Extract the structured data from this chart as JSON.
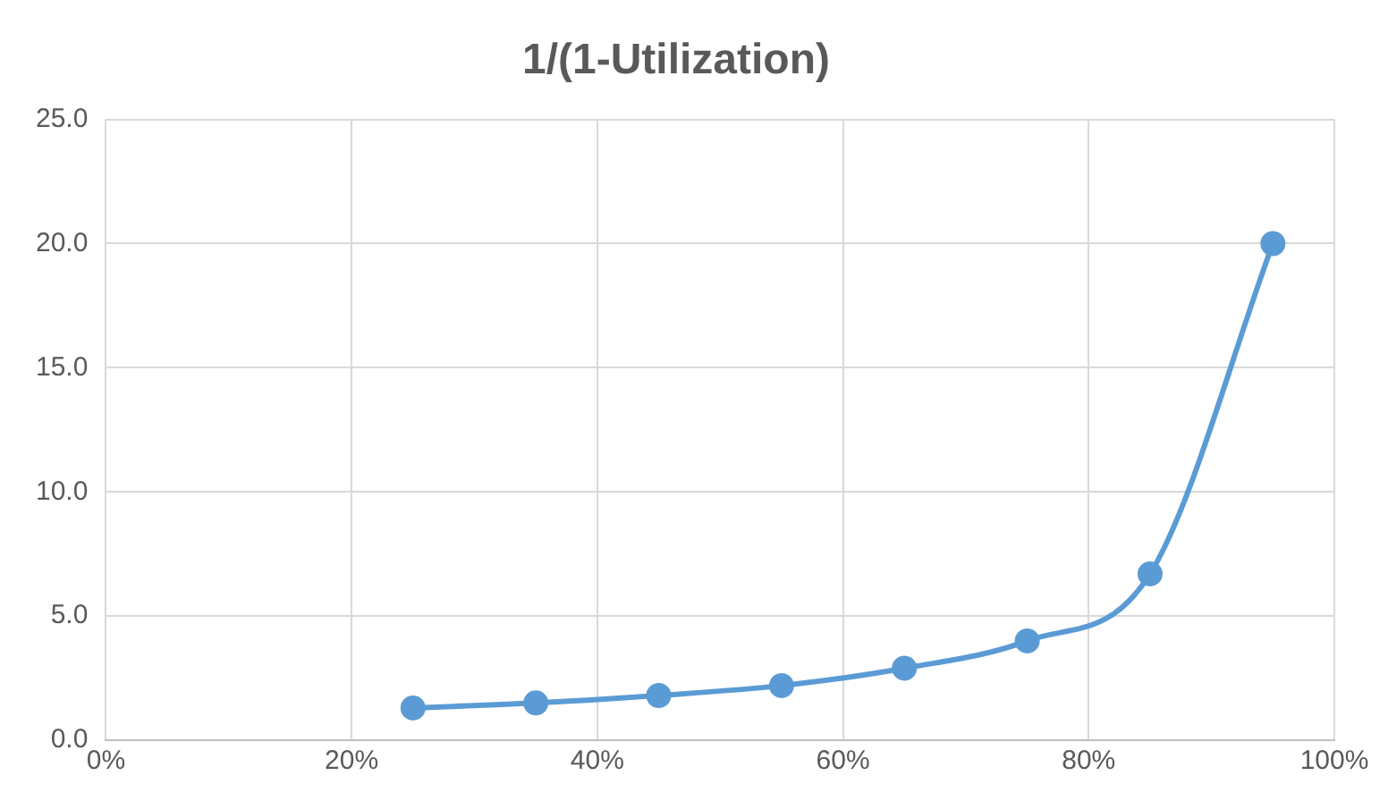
{
  "chart_data": {
    "type": "line",
    "title": "1/(1-Utilization)",
    "x": [
      25,
      35,
      45,
      55,
      65,
      75,
      85,
      95
    ],
    "series": [
      {
        "color": "#5b9bd5",
        "values": [
          1.3,
          1.5,
          1.8,
          2.2,
          2.9,
          4.0,
          6.7,
          20.0
        ]
      }
    ],
    "xlim": [
      0,
      100
    ],
    "xticks": [
      {
        "value": 0,
        "label": "0%"
      },
      {
        "value": 20,
        "label": "20%"
      },
      {
        "value": 40,
        "label": "40%"
      },
      {
        "value": 60,
        "label": "60%"
      },
      {
        "value": 80,
        "label": "80%"
      },
      {
        "value": 100,
        "label": "100%"
      }
    ],
    "ylim": [
      0,
      25
    ],
    "yticks": [
      {
        "value": 0,
        "label": "0.0"
      },
      {
        "value": 5,
        "label": "5.0"
      },
      {
        "value": 10,
        "label": "10.0"
      },
      {
        "value": 15,
        "label": "15.0"
      },
      {
        "value": 20,
        "label": "20.0"
      },
      {
        "value": 25,
        "label": "25.0"
      }
    ],
    "grid": true,
    "legend": false,
    "marker": "circle",
    "line_style": "solid"
  }
}
